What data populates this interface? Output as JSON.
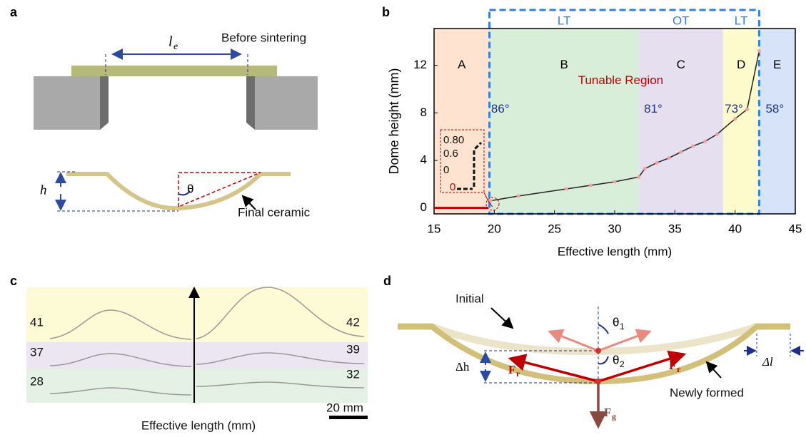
{
  "chart_data": {
    "type": "line",
    "panel_label": "b",
    "xlabel": "Effective length (mm)",
    "ylabel": "Dome height (mm)",
    "xlim": [
      15,
      45
    ],
    "ylim": [
      -0.5,
      15.1
    ],
    "xticks": [
      15,
      20,
      25,
      30,
      35,
      40,
      45
    ],
    "yticks": [
      0,
      4,
      8,
      12
    ],
    "x": [
      19.7,
      22,
      26,
      28,
      30,
      32,
      32.5,
      33.5,
      34.5,
      35.5,
      36.5,
      37.5,
      38.5,
      40,
      41,
      42
    ],
    "series": [
      {
        "color": "#222222",
        "marker_color": "#f0a0a0",
        "values": [
          0.6,
          1.0,
          1.6,
          1.9,
          2.2,
          2.6,
          3.3,
          3.8,
          4.2,
          4.7,
          5.2,
          5.6,
          6.2,
          7.5,
          8.3,
          13.2
        ]
      }
    ],
    "baseline": {
      "x": [
        15,
        19.5
      ],
      "values": [
        0,
        0
      ],
      "color": "#c00000"
    },
    "regions": [
      {
        "label": "A",
        "from": 15,
        "to": 19.6,
        "color": "#fde3d0"
      },
      {
        "label": "B",
        "from": 19.6,
        "to": 32,
        "color": "#d8eed9"
      },
      {
        "label": "C",
        "from": 32,
        "to": 39,
        "color": "#e6dff0"
      },
      {
        "label": "D",
        "from": 39,
        "to": 42,
        "color": "#fdfbcc"
      },
      {
        "label": "E",
        "from": 42,
        "to": 45,
        "color": "#d7e3f8"
      }
    ],
    "spans": [
      {
        "label": "LT",
        "from": 19.6,
        "to": 32
      },
      {
        "label": "OT",
        "from": 32,
        "to": 39
      },
      {
        "label": "LT",
        "from": 39,
        "to": 42
      }
    ],
    "annotations": [
      {
        "text": "Tunable Region",
        "x": 30.5,
        "y": 10.7,
        "color": "#c00000"
      },
      {
        "text": "86°",
        "x": 20.5,
        "y": 8.3,
        "color": "#1f2f8f"
      },
      {
        "text": "81°",
        "x": 33.2,
        "y": 8.3,
        "color": "#1f2f8f"
      },
      {
        "text": "73°",
        "x": 39.9,
        "y": 8.3,
        "color": "#1f2f8f"
      },
      {
        "text": "58°",
        "x": 43.3,
        "y": 8.3,
        "color": "#1f2f8f"
      }
    ],
    "inset_labels": [
      "0.80",
      "0.6",
      "0",
      "0"
    ]
  },
  "panel_a": {
    "label": "a",
    "length_symbol": "l",
    "length_subscript": "e",
    "before": "Before sintering",
    "height": "h",
    "angle": "θ",
    "after": "Final ceramic"
  },
  "panel_c": {
    "label": "c",
    "left": [
      "41",
      "37",
      "28"
    ],
    "right": [
      "42",
      "39",
      "32"
    ],
    "scale": "20 mm",
    "xlabel": "Effective length (mm)"
  },
  "panel_d": {
    "label": "d",
    "initial": "Initial",
    "theta": "θ",
    "sub1": "1",
    "sub2": "2",
    "dh": "Δh",
    "force": "F",
    "fr_sub": "r",
    "fg_sub": "g",
    "newly": "Newly formed",
    "dl": "Δl"
  }
}
